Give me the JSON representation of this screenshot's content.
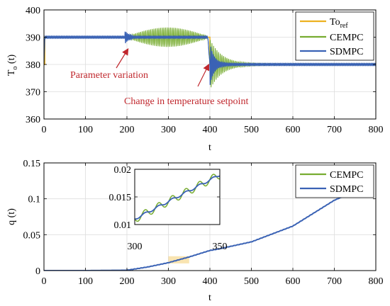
{
  "colors": {
    "ref": "#EDB120",
    "cempc": "#77AC30",
    "sdmpc": "#3A62B5",
    "annotation": "#C0272D",
    "axis": "#000000",
    "grid": "#DDDDDD",
    "highlight": "#EDB120"
  },
  "chart_data": [
    {
      "type": "line",
      "ylabel": "T",
      "ylabel_sub": "o",
      "ylabel_suffix": "(t)",
      "xlabel": "t",
      "xlim": [
        0,
        800
      ],
      "ylim": [
        360,
        400
      ],
      "xticks": [
        0,
        100,
        200,
        300,
        400,
        500,
        600,
        700,
        800
      ],
      "yticks": [
        360,
        370,
        380,
        390,
        400
      ],
      "grid": true,
      "legend_position": "top-right",
      "series": [
        {
          "name": "To",
          "name_sub": "ref",
          "x": [
            0,
            2,
            2,
            400,
            400,
            800
          ],
          "y": [
            380,
            380,
            390,
            390,
            380,
            380
          ]
        },
        {
          "name": "CEMPC",
          "x": [
            0,
            2,
            100,
            200,
            250,
            300,
            350,
            395,
            400,
            410,
            430,
            460,
            500,
            600,
            700,
            800
          ],
          "y": [
            380,
            390,
            390,
            390,
            390,
            390,
            390,
            390,
            380,
            380,
            380,
            380,
            380,
            380,
            380,
            380
          ]
        },
        {
          "name": "SDMPC",
          "x": [
            0,
            2,
            100,
            200,
            250,
            300,
            350,
            395,
            400,
            410,
            430,
            460,
            500,
            600,
            700,
            800
          ],
          "y": [
            380,
            390,
            390,
            390,
            390,
            390,
            390,
            390,
            380,
            380,
            380,
            380,
            380,
            380,
            380,
            380
          ]
        }
      ],
      "annotations": [
        {
          "text": "Parameter variation",
          "target": [
            196,
            386
          ]
        },
        {
          "text": "Change in temperature setpoint",
          "target": [
            393,
            382
          ]
        }
      ]
    },
    {
      "type": "line",
      "ylabel": "q (t)",
      "xlabel": "t",
      "xlim": [
        0,
        800
      ],
      "ylim": [
        0,
        0.15
      ],
      "xticks": [
        0,
        100,
        200,
        300,
        400,
        500,
        600,
        700,
        800
      ],
      "yticks": [
        0,
        0.05,
        0.1,
        0.15
      ],
      "grid": true,
      "legend_position": "top-right",
      "series": [
        {
          "name": "CEMPC",
          "x": [
            0,
            100,
            200,
            250,
            300,
            350,
            400,
            420,
            500,
            600,
            700,
            720
          ],
          "y": [
            0,
            0,
            0.0005,
            0.005,
            0.011,
            0.019,
            0.028,
            0.03,
            0.04,
            0.062,
            0.098,
            0.103
          ]
        },
        {
          "name": "SDMPC",
          "x": [
            0,
            100,
            200,
            250,
            300,
            350,
            400,
            420,
            500,
            600,
            700,
            720
          ],
          "y": [
            0,
            0,
            0.0005,
            0.005,
            0.011,
            0.019,
            0.028,
            0.03,
            0.04,
            0.062,
            0.098,
            0.103
          ]
        }
      ],
      "highlight_region": {
        "x": [
          300,
          350
        ],
        "y": [
          0.01,
          0.02
        ]
      },
      "inset": {
        "xlim": [
          300,
          350
        ],
        "ylim": [
          0.01,
          0.02
        ],
        "xticks": [
          300,
          350
        ],
        "yticks": [
          0.01,
          0.015,
          0.02
        ],
        "grid": true
      }
    }
  ]
}
